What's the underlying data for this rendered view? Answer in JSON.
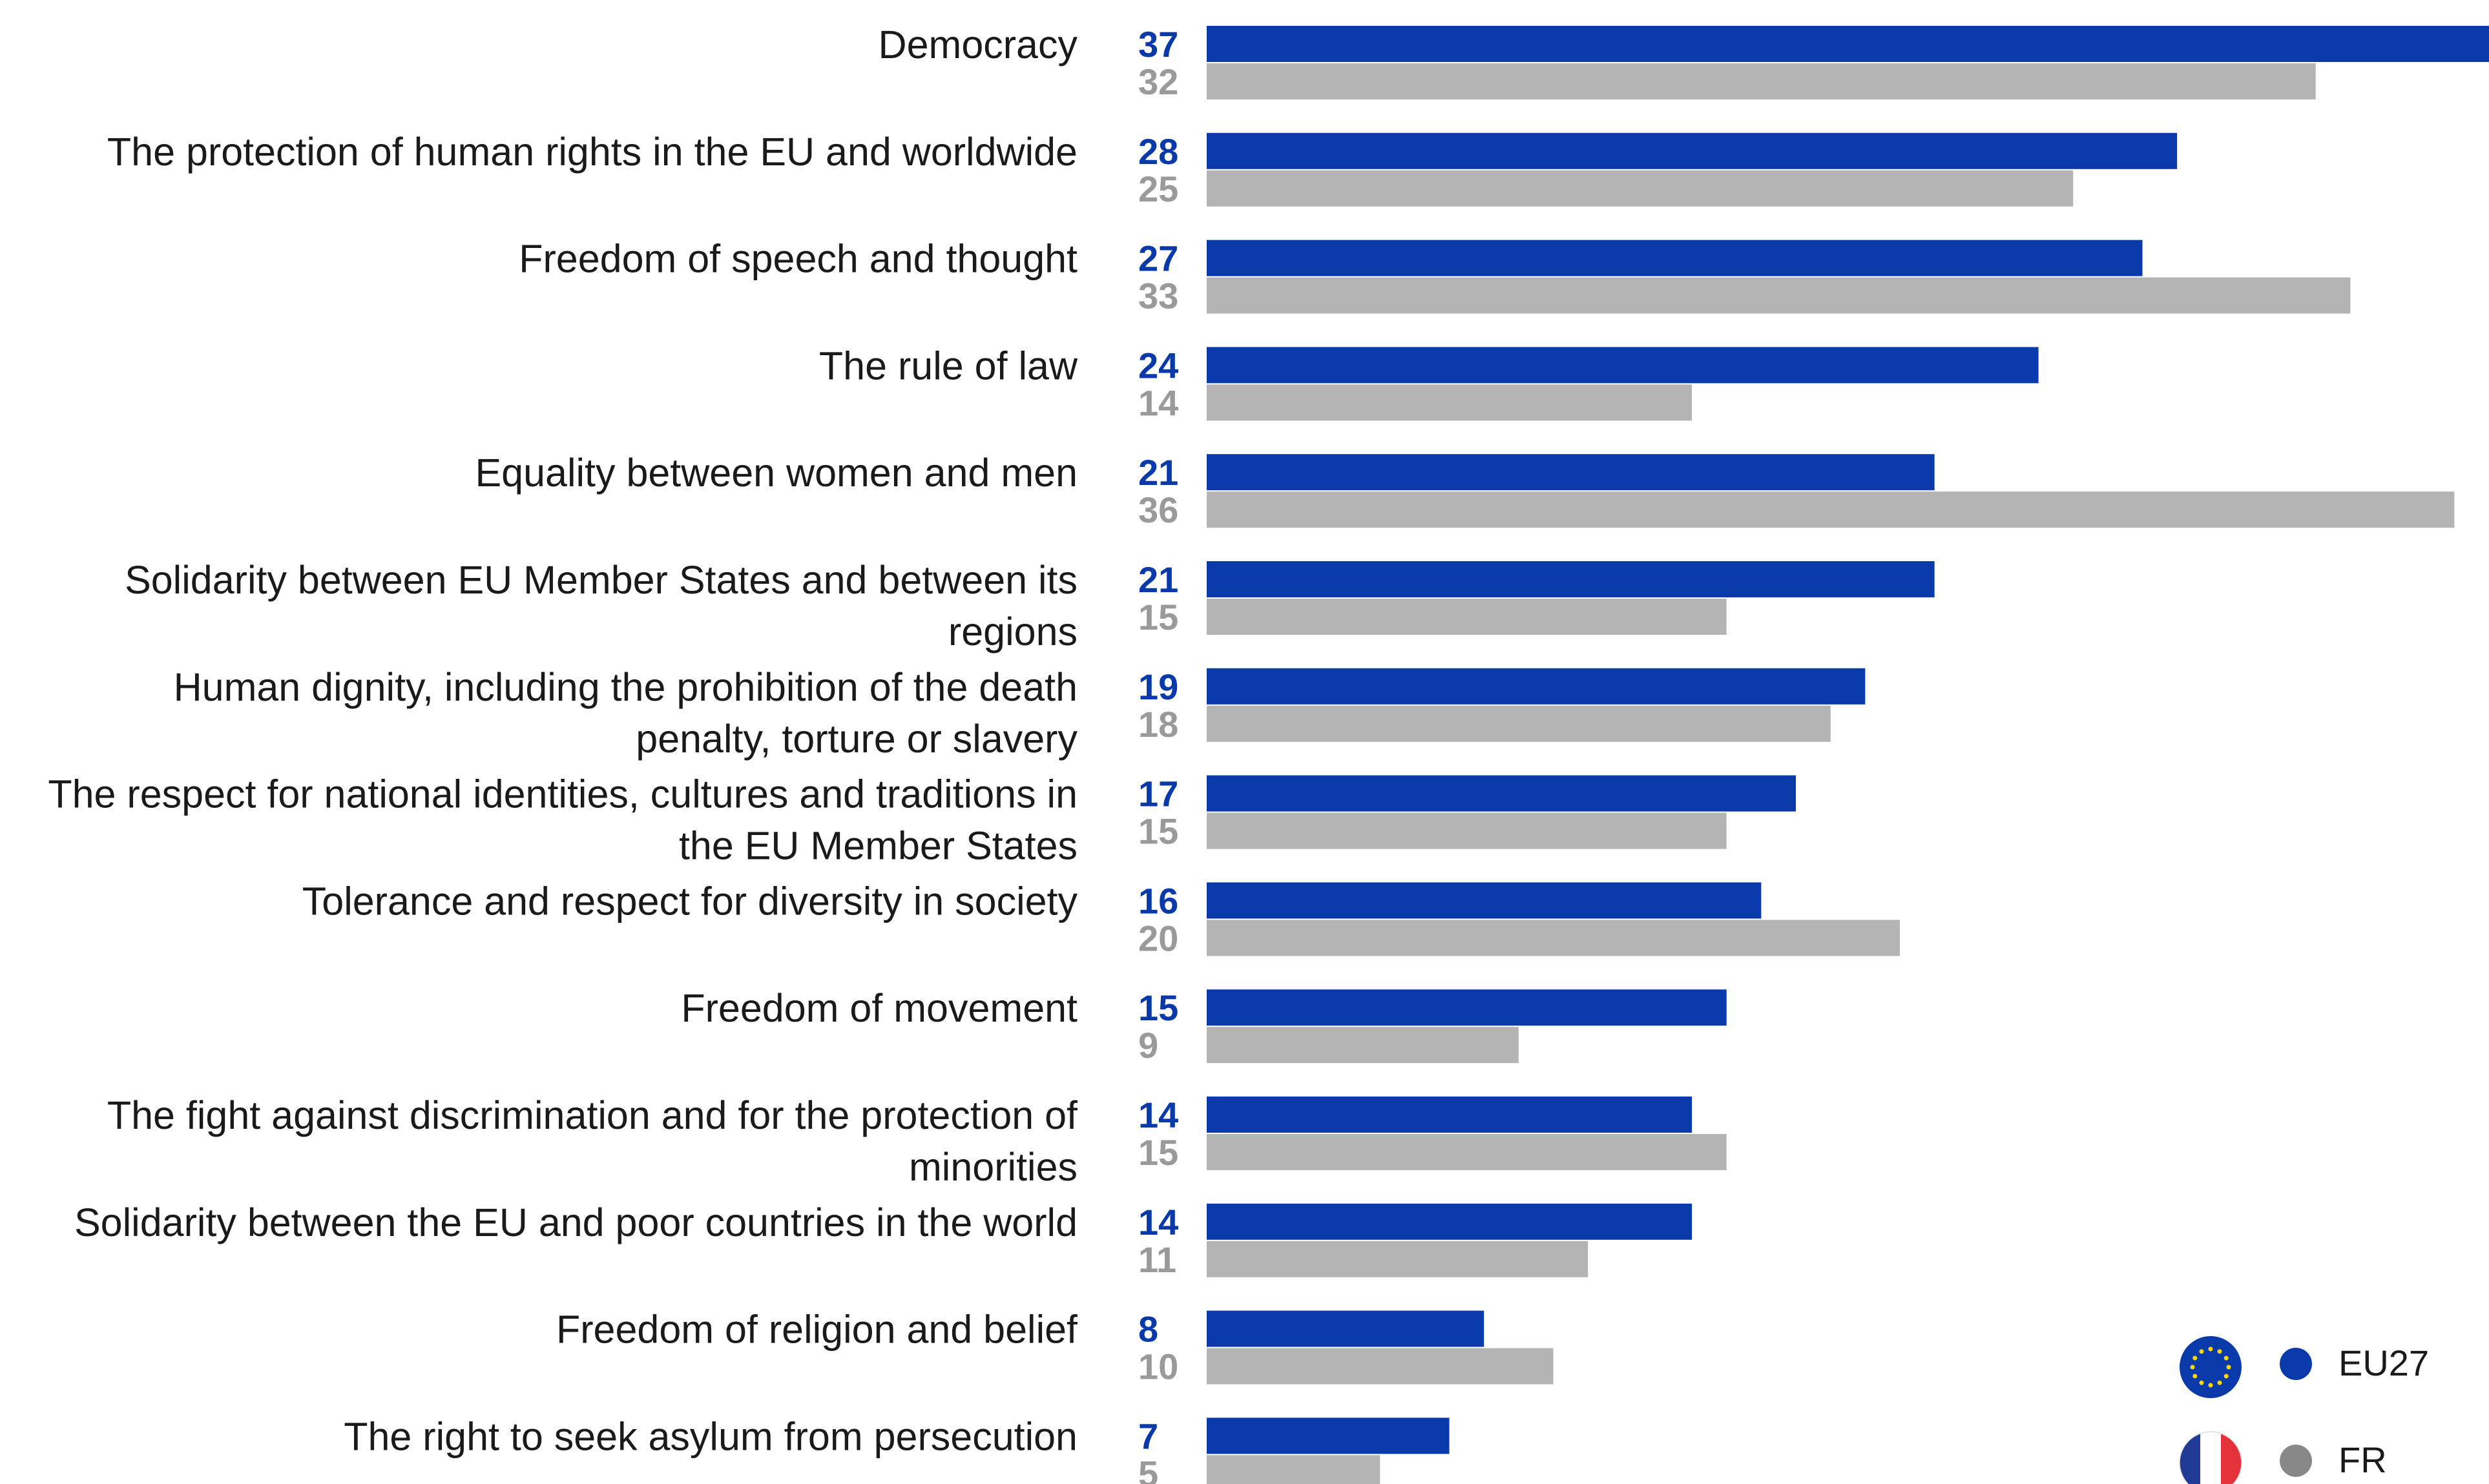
{
  "chart_data": {
    "type": "bar",
    "orientation": "horizontal",
    "categories": [
      "Democracy",
      "The protection of human rights in the EU and worldwide",
      "Freedom of speech and thought",
      "The rule of law",
      "Equality between women and men",
      "Solidarity between EU Member States and between its regions",
      "Human dignity, including the prohibition of the death penalty, torture or slavery",
      "The respect for national identities, cultures and traditions in the EU Member States",
      "Tolerance and respect for diversity in society",
      "Freedom of movement",
      "The fight against discrimination and for the protection of minorities",
      "Solidarity between the EU and poor countries in the world",
      "Freedom of religion and belief",
      "The right to seek asylum from persecution"
    ],
    "category_lines": [
      [
        "Democracy"
      ],
      [
        "The protection of human rights in the EU and worldwide"
      ],
      [
        "Freedom of speech and thought"
      ],
      [
        "The rule of law"
      ],
      [
        "Equality between women and men"
      ],
      [
        "Solidarity between EU Member States and between its",
        "regions"
      ],
      [
        "Human dignity, including the prohibition of the death",
        "penalty, torture or slavery"
      ],
      [
        "The respect for national identities, cultures and traditions in",
        "the EU Member States"
      ],
      [
        "Tolerance and respect for diversity in society"
      ],
      [
        "Freedom of movement"
      ],
      [
        "The fight against discrimination and for the protection of",
        "minorities"
      ],
      [
        "Solidarity between the EU and poor countries in the world"
      ],
      [
        "Freedom of religion and belief"
      ],
      [
        "The right to seek asylum from persecution"
      ]
    ],
    "series": [
      {
        "name": "EU27",
        "color": "#0a3aaa",
        "values": [
          37,
          28,
          27,
          24,
          21,
          21,
          19,
          17,
          16,
          15,
          14,
          14,
          8,
          7
        ]
      },
      {
        "name": "FR",
        "color": "#b4b4b4",
        "label_color": "#9a9a9a",
        "legend_color": "#888888",
        "values": [
          32,
          25,
          33,
          14,
          36,
          15,
          18,
          15,
          20,
          9,
          15,
          11,
          10,
          5
        ]
      }
    ],
    "xlim": [
      0,
      37
    ],
    "grid": false,
    "legend_position": "bottom-right",
    "legend_icons": [
      "eu-flag-icon",
      "france-flag-icon"
    ]
  }
}
